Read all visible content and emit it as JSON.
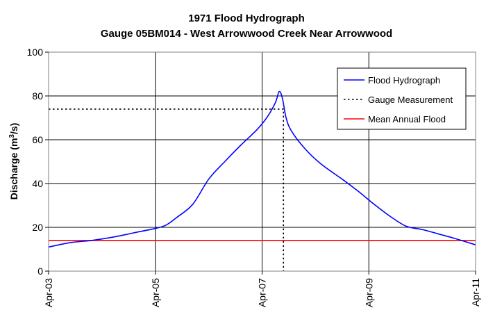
{
  "chart_data": {
    "type": "line",
    "title": "1971 Flood Hydrograph",
    "subtitle": "Gauge 05BM014 - West Arrowwood Creek Near Arrowwood",
    "ylabel_main": "Discharge (m",
    "ylabel_sup": "3",
    "ylabel_end": "/s)",
    "xlabel": "",
    "x_ticks": [
      "Apr-03",
      "Apr-05",
      "Apr-07",
      "Apr-09",
      "Apr-11"
    ],
    "xlim": [
      3,
      11
    ],
    "ylim": [
      0,
      100
    ],
    "y_ticks": [
      0,
      20,
      40,
      60,
      80,
      100
    ],
    "y_tick_labels": [
      "0",
      "20",
      "40",
      "60",
      "80",
      "100"
    ],
    "grid": true,
    "legend_position": "top-right",
    "series": [
      {
        "name": "Flood Hydrograph",
        "color": "#0000ff",
        "style": "solid",
        "x": [
          3.0,
          3.4,
          3.8,
          4.2,
          4.6,
          5.0,
          5.2,
          5.4,
          5.7,
          6.0,
          6.3,
          6.6,
          6.9,
          7.1,
          7.25,
          7.32,
          7.38,
          7.45,
          7.55,
          7.8,
          8.1,
          8.5,
          8.8,
          9.1,
          9.4,
          9.7,
          10.0,
          10.3,
          10.6,
          11.0
        ],
        "y": [
          11,
          13,
          14,
          15.5,
          17.5,
          19.5,
          21,
          24.5,
          30.5,
          42,
          50,
          57.5,
          64.5,
          70.5,
          77,
          82,
          79,
          70,
          64,
          56,
          49,
          42,
          36.5,
          30.5,
          25,
          20.5,
          19,
          17,
          15,
          12
        ]
      },
      {
        "name": "Gauge Measurement",
        "color": "#000000",
        "style": "dotted",
        "x": [
          3.0,
          7.4,
          7.4
        ],
        "y": [
          74,
          74,
          0
        ]
      },
      {
        "name": "Mean Annual Flood",
        "color": "#ff0000",
        "style": "solid",
        "x": [
          3.0,
          11.0
        ],
        "y": [
          14,
          14
        ]
      }
    ]
  }
}
